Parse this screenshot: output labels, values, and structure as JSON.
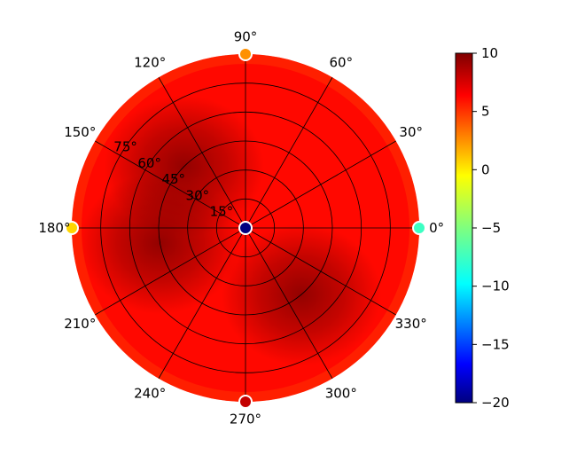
{
  "chart_data": {
    "type": "heatmap",
    "projection": "polar",
    "title": "",
    "angular_ticks": [
      "0°",
      "30°",
      "60°",
      "90°",
      "120°",
      "150°",
      "180°",
      "210°",
      "240°",
      "270°",
      "300°",
      "330°"
    ],
    "angular_tick_values_deg": [
      0,
      30,
      60,
      90,
      120,
      150,
      180,
      210,
      240,
      270,
      300,
      330
    ],
    "radial_ticks": [
      "15°",
      "30°",
      "45°",
      "60°",
      "75°"
    ],
    "radial_tick_values": [
      15,
      30,
      45,
      60,
      75
    ],
    "rlim": [
      0,
      90
    ],
    "grid": true,
    "colormap": "jet",
    "colorbar": {
      "vmin": -20,
      "vmax": 10,
      "ticks": [
        "10",
        "5",
        "0",
        "−5",
        "−10",
        "−15",
        "−20"
      ],
      "tick_values": [
        10,
        5,
        0,
        -5,
        -10,
        -15,
        -20
      ],
      "placement": "right"
    },
    "field": {
      "background_value": 6,
      "outer_edge_value": 4.5,
      "hotspots": [
        {
          "theta_deg": 135,
          "r": 45,
          "value": 10
        },
        {
          "theta_deg": 190,
          "r": 45,
          "value": 10
        },
        {
          "theta_deg": 310,
          "r": 45,
          "value": 10
        }
      ]
    },
    "markers": [
      {
        "label": "center",
        "theta_deg": 0,
        "r": 0,
        "value": -20
      },
      {
        "label": "0°",
        "theta_deg": 0,
        "r": 90,
        "value": -7
      },
      {
        "label": "90°",
        "theta_deg": 90,
        "r": 90,
        "value": 2
      },
      {
        "label": "180°",
        "theta_deg": 180,
        "r": 90,
        "value": 0
      },
      {
        "label": "270°",
        "theta_deg": 270,
        "r": 90,
        "value": 8
      }
    ]
  }
}
